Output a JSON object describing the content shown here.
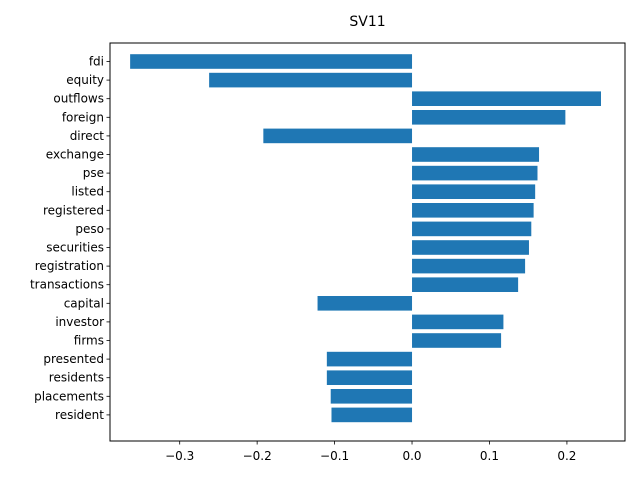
{
  "chart_data": {
    "type": "bar",
    "orientation": "horizontal",
    "title": "SV11",
    "xlabel": "",
    "ylabel": "",
    "xlim": [
      -0.39,
      0.275
    ],
    "xticks": [
      -0.3,
      -0.2,
      -0.1,
      0.0,
      0.1,
      0.2
    ],
    "xtick_labels": [
      "−0.3",
      "−0.2",
      "−0.1",
      "0.0",
      "0.1",
      "0.2"
    ],
    "grid": false,
    "bar_color": "#1f77b4",
    "categories": [
      "fdi",
      "equity",
      "outflows",
      "foreign",
      "direct",
      "exchange",
      "pse",
      "listed",
      "registered",
      "peso",
      "securities",
      "registration",
      "transactions",
      "capital",
      "investor",
      "firms",
      "presented",
      "residents",
      "placements",
      "resident"
    ],
    "values": [
      -0.364,
      -0.262,
      0.244,
      0.198,
      -0.192,
      0.164,
      0.162,
      0.159,
      0.157,
      0.154,
      0.151,
      0.146,
      0.137,
      -0.122,
      0.118,
      0.115,
      -0.11,
      -0.11,
      -0.105,
      -0.104
    ]
  }
}
